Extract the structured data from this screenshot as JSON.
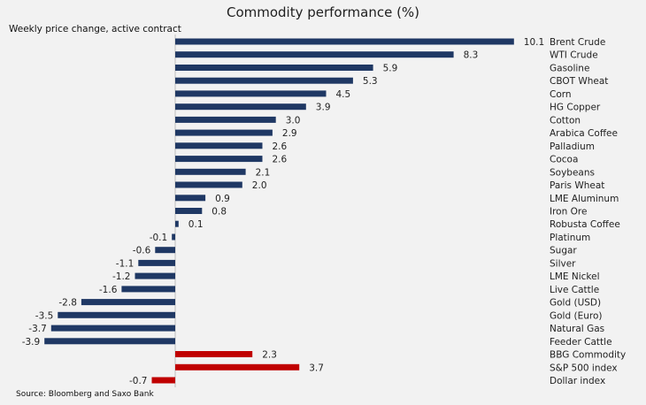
{
  "chart_data": {
    "type": "bar",
    "orientation": "horizontal",
    "title": "Commodity performance (%)",
    "subtitle": "Weekly price change, active contract",
    "source": "Source: Bloomberg and Saxo Bank",
    "xlabel": "",
    "ylabel": "",
    "xlim": [
      -4,
      10.5
    ],
    "grid": false,
    "legend": "none",
    "categories": [
      "Brent Crude",
      "WTI Crude",
      "Gasoline",
      "CBOT Wheat",
      "Corn",
      "HG Copper",
      "Cotton",
      "Arabica Coffee",
      "Palladium",
      "Cocoa",
      "Soybeans",
      "Paris Wheat",
      "LME Aluminum",
      "Iron Ore",
      "Robusta Coffee",
      "Platinum",
      "Sugar",
      "Silver",
      "LME Nickel",
      "Live Cattle",
      "Gold (USD)",
      "Gold (Euro)",
      "Natural Gas",
      "Feeder Cattle",
      "BBG Commodity",
      "S&P 500 index",
      "Dollar index"
    ],
    "values": [
      10.1,
      8.3,
      5.9,
      5.3,
      4.5,
      3.9,
      3.0,
      2.9,
      2.6,
      2.6,
      2.1,
      2.0,
      0.9,
      0.8,
      0.1,
      -0.1,
      -0.6,
      -1.1,
      -1.2,
      -1.6,
      -2.8,
      -3.5,
      -3.7,
      -3.9,
      2.3,
      3.7,
      -0.7
    ],
    "value_labels": [
      "10.1",
      "8.3",
      "5.9",
      "5.3",
      "4.5",
      "3.9",
      "3.0",
      "2.9",
      "2.6",
      "2.6",
      "2.1",
      "2.0",
      "0.9",
      "0.8",
      "0.1",
      "-0.1",
      "-0.6",
      "-1.1",
      "-1.2",
      "-1.6",
      "-2.8",
      "-3.5",
      "-3.7",
      "-3.9",
      "2.3",
      "3.7",
      "-0.7"
    ],
    "bar_groups": [
      "commodity",
      "commodity",
      "commodity",
      "commodity",
      "commodity",
      "commodity",
      "commodity",
      "commodity",
      "commodity",
      "commodity",
      "commodity",
      "commodity",
      "commodity",
      "commodity",
      "commodity",
      "commodity",
      "commodity",
      "commodity",
      "commodity",
      "commodity",
      "commodity",
      "commodity",
      "commodity",
      "commodity",
      "benchmark",
      "benchmark",
      "benchmark"
    ],
    "colors": {
      "commodity": "#1f3864",
      "benchmark": "#c00000"
    }
  }
}
